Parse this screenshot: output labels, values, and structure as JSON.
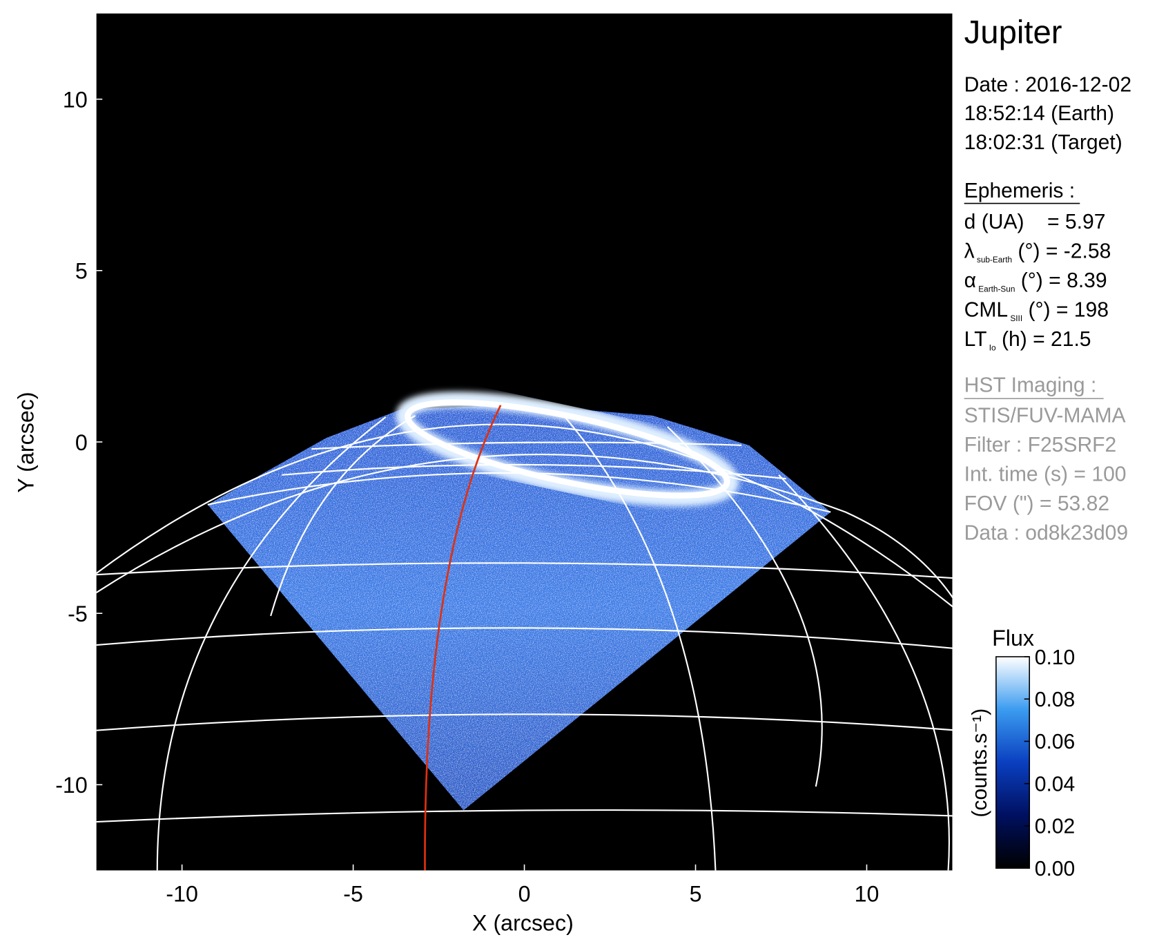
{
  "chart_data": {
    "type": "image",
    "xlabel": "X (arcsec)",
    "ylabel": "Y (arcsec)",
    "xlim": [
      -12.5,
      12.5
    ],
    "ylim": [
      -12.5,
      12.5
    ],
    "xticks": [
      -10,
      -5,
      0,
      5,
      10
    ],
    "yticks": [
      -10,
      -5,
      0,
      5,
      10
    ],
    "colorbar": {
      "title": "Flux",
      "label": "(counts.s⁻¹)",
      "clim": [
        0,
        0.1
      ],
      "ticks": [
        {
          "value": 0,
          "label": "0.00"
        },
        {
          "value": 0.02,
          "label": "0.02"
        },
        {
          "value": 0.04,
          "label": "0.04"
        },
        {
          "value": 0.06,
          "label": "0.06"
        },
        {
          "value": 0.08,
          "label": "0.08"
        },
        {
          "value": 0.1,
          "label": "0.10"
        }
      ]
    },
    "panel": {
      "title": "Jupiter",
      "date": [
        "Date : 2016-12-02",
        "18:52:14 (Earth)",
        "18:02:31 (Target)"
      ],
      "ephemeris_title": "Ephemeris :",
      "ephemeris": [
        {
          "symbol": "d (UA)",
          "text": "    = 5.97"
        },
        {
          "symbol": "λ",
          "sub": "sub-Earth",
          "text": " (°) = -2.58"
        },
        {
          "symbol": "α",
          "sub": "Earth-Sun",
          "text": " (°) = 8.39"
        },
        {
          "symbol": "CML",
          "sub": "SIII",
          "text": " (°) = 198"
        },
        {
          "symbol": "LT",
          "sub": "Io",
          "text": " (h) = 21.5"
        }
      ],
      "imaging_title": "HST Imaging :",
      "imaging": [
        "STIS/FUV-MAMA",
        "Filter : F25SRF2",
        "Int. time (s) = 100",
        "FOV (\") = 53.82",
        "Data : od8k23d09"
      ]
    }
  }
}
